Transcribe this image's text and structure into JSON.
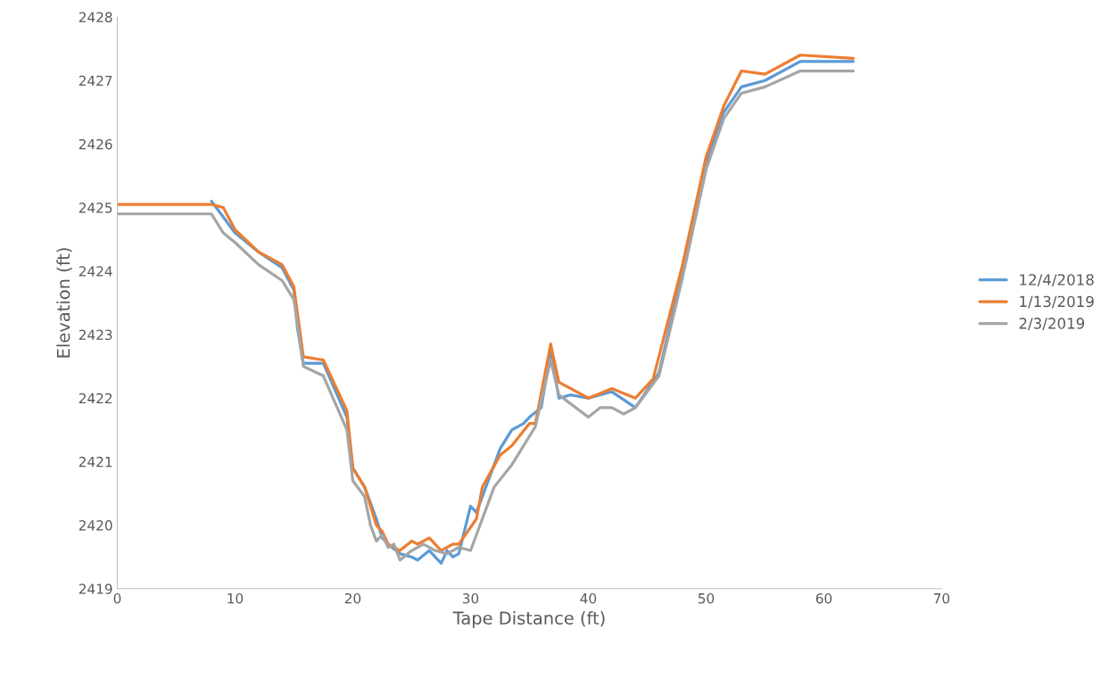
{
  "chart_data": {
    "type": "line",
    "xlabel": "Tape Distance (ft)",
    "ylabel": "Elevation (ft)",
    "xlim": [
      0,
      70
    ],
    "xticks": [
      0,
      10,
      20,
      30,
      40,
      50,
      60,
      70
    ],
    "ylim": [
      2419,
      2428
    ],
    "yticks": [
      2419,
      2420,
      2421,
      2422,
      2423,
      2424,
      2425,
      2426,
      2427,
      2428
    ],
    "grid": false,
    "legend": "right",
    "marker": "none",
    "line_style": "solid",
    "series": [
      {
        "name": "12/4/2018",
        "color": "#5b9bd5",
        "x": [
          8,
          10,
          12,
          14,
          15,
          15.3,
          15.8,
          17.5,
          19.5,
          20,
          21,
          22,
          22.5,
          23,
          24,
          25,
          25.5,
          26.5,
          27.5,
          28,
          28.5,
          29,
          30,
          30.5,
          31.5,
          32.5,
          33.5,
          34.5,
          35,
          36,
          36.8,
          37.5,
          38.5,
          40,
          42,
          44,
          46,
          48,
          50,
          51.5,
          53,
          55,
          58,
          62.5
        ],
        "values": [
          2425.1,
          2424.6,
          2424.3,
          2424.05,
          2423.7,
          2423.1,
          2422.55,
          2422.55,
          2421.7,
          2420.9,
          2420.6,
          2420.1,
          2419.8,
          2419.7,
          2419.55,
          2419.5,
          2419.45,
          2419.6,
          2419.4,
          2419.6,
          2419.5,
          2419.55,
          2420.3,
          2420.2,
          2420.7,
          2421.2,
          2421.5,
          2421.6,
          2421.7,
          2421.85,
          2422.75,
          2422.0,
          2422.05,
          2422.0,
          2422.1,
          2421.85,
          2422.4,
          2424.0,
          2425.7,
          2426.5,
          2426.9,
          2427.0,
          2427.3,
          2427.3
        ]
      },
      {
        "name": "1/13/2019",
        "color": "#ed7d31",
        "x": [
          0,
          8,
          9,
          10,
          12,
          14,
          15,
          15.8,
          17.5,
          19.5,
          20,
          21,
          22,
          22.5,
          23,
          24,
          25,
          25.5,
          26.5,
          27.5,
          28.5,
          29,
          30.5,
          31,
          32.5,
          33.5,
          35,
          35.5,
          36.8,
          37.5,
          40,
          42,
          44,
          45.5,
          48,
          50,
          51.5,
          53,
          55,
          58,
          62.5
        ],
        "values": [
          2425.05,
          2425.05,
          2425.0,
          2424.65,
          2424.3,
          2424.1,
          2423.75,
          2422.65,
          2422.6,
          2421.8,
          2420.9,
          2420.6,
          2420.0,
          2419.9,
          2419.7,
          2419.6,
          2419.75,
          2419.7,
          2419.8,
          2419.6,
          2419.7,
          2419.7,
          2420.1,
          2420.6,
          2421.1,
          2421.25,
          2421.6,
          2421.6,
          2422.85,
          2422.25,
          2422.0,
          2422.15,
          2422.0,
          2422.3,
          2424.1,
          2425.8,
          2426.6,
          2427.15,
          2427.1,
          2427.4,
          2427.35
        ]
      },
      {
        "name": "2/3/2019",
        "color": "#a5a5a5",
        "x": [
          0,
          8,
          9,
          10,
          12,
          14,
          15,
          15.8,
          17.5,
          19.5,
          20,
          21,
          21.5,
          22,
          22.5,
          23,
          23.5,
          24,
          25,
          26,
          27,
          28,
          29,
          30,
          31,
          32,
          33.5,
          35,
          35.5,
          36.8,
          37.5,
          40,
          41,
          42,
          43,
          44,
          46,
          48,
          50,
          51.5,
          53,
          55,
          58,
          62.5
        ],
        "values": [
          2424.9,
          2424.9,
          2424.6,
          2424.45,
          2424.1,
          2423.85,
          2423.55,
          2422.5,
          2422.35,
          2421.5,
          2420.7,
          2420.45,
          2420.0,
          2419.75,
          2419.85,
          2419.65,
          2419.7,
          2419.45,
          2419.6,
          2419.7,
          2419.6,
          2419.55,
          2419.65,
          2419.6,
          2420.1,
          2420.6,
          2420.95,
          2421.4,
          2421.55,
          2422.6,
          2422.05,
          2421.7,
          2421.85,
          2421.85,
          2421.75,
          2421.85,
          2422.35,
          2423.9,
          2425.6,
          2426.4,
          2426.8,
          2426.9,
          2427.15,
          2427.15
        ]
      }
    ]
  }
}
